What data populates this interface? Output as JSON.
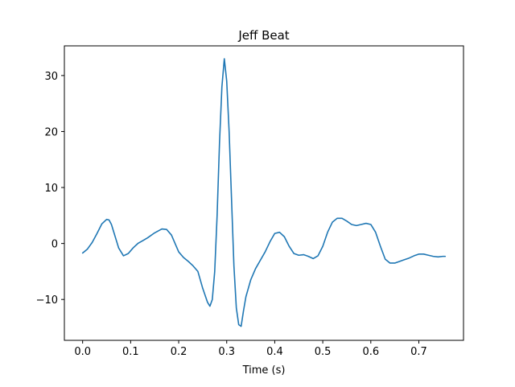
{
  "chart_data": {
    "type": "line",
    "title": "Jeff Beat",
    "xlabel": "Time (s)",
    "ylabel": "",
    "xlim": [
      -0.038,
      0.793
    ],
    "ylim": [
      -17.3,
      35.3
    ],
    "xticks": [
      0.0,
      0.1,
      0.2,
      0.3,
      0.4,
      0.5,
      0.6,
      0.7
    ],
    "xtick_labels": [
      "0.0",
      "0.1",
      "0.2",
      "0.3",
      "0.4",
      "0.5",
      "0.6",
      "0.7"
    ],
    "yticks": [
      -10,
      0,
      10,
      20,
      30
    ],
    "ytick_labels": [
      "−10",
      "0",
      "10",
      "20",
      "30"
    ],
    "grid": false,
    "legend": "none",
    "series": [
      {
        "color": "#1f77b4",
        "x": [
          0.0,
          0.01,
          0.02,
          0.03,
          0.04,
          0.05,
          0.055,
          0.06,
          0.065,
          0.075,
          0.085,
          0.095,
          0.105,
          0.115,
          0.125,
          0.135,
          0.15,
          0.165,
          0.175,
          0.185,
          0.19,
          0.2,
          0.21,
          0.22,
          0.23,
          0.24,
          0.25,
          0.26,
          0.265,
          0.27,
          0.275,
          0.28,
          0.285,
          0.29,
          0.295,
          0.3,
          0.305,
          0.31,
          0.315,
          0.32,
          0.325,
          0.33,
          0.335,
          0.34,
          0.345,
          0.35,
          0.36,
          0.37,
          0.38,
          0.39,
          0.4,
          0.41,
          0.42,
          0.43,
          0.44,
          0.45,
          0.46,
          0.47,
          0.48,
          0.49,
          0.5,
          0.51,
          0.52,
          0.53,
          0.54,
          0.55,
          0.56,
          0.57,
          0.58,
          0.59,
          0.6,
          0.61,
          0.62,
          0.63,
          0.64,
          0.65,
          0.66,
          0.67,
          0.68,
          0.69,
          0.7,
          0.71,
          0.72,
          0.73,
          0.74,
          0.75,
          0.755
        ],
        "y": [
          -1.7,
          -1.0,
          0.2,
          1.8,
          3.5,
          4.3,
          4.2,
          3.4,
          2.0,
          -0.8,
          -2.2,
          -1.8,
          -0.8,
          0.0,
          0.5,
          1.0,
          1.9,
          2.6,
          2.5,
          1.5,
          0.5,
          -1.5,
          -2.5,
          -3.2,
          -4.0,
          -5.0,
          -8.0,
          -10.5,
          -11.2,
          -10.0,
          -5.0,
          5.0,
          18.0,
          28.0,
          33.0,
          29.0,
          20.0,
          8.0,
          -4.0,
          -11.5,
          -14.5,
          -14.8,
          -12.0,
          -9.5,
          -8.0,
          -6.5,
          -4.5,
          -3.0,
          -1.5,
          0.3,
          1.8,
          2.0,
          1.2,
          -0.5,
          -1.8,
          -2.1,
          -2.0,
          -2.3,
          -2.7,
          -2.2,
          -0.5,
          2.0,
          3.8,
          4.5,
          4.5,
          4.0,
          3.4,
          3.2,
          3.4,
          3.6,
          3.4,
          2.0,
          -0.5,
          -2.8,
          -3.5,
          -3.5,
          -3.2,
          -2.9,
          -2.6,
          -2.2,
          -1.9,
          -1.9,
          -2.1,
          -2.3,
          -2.4,
          -2.3,
          -2.3
        ]
      }
    ]
  }
}
